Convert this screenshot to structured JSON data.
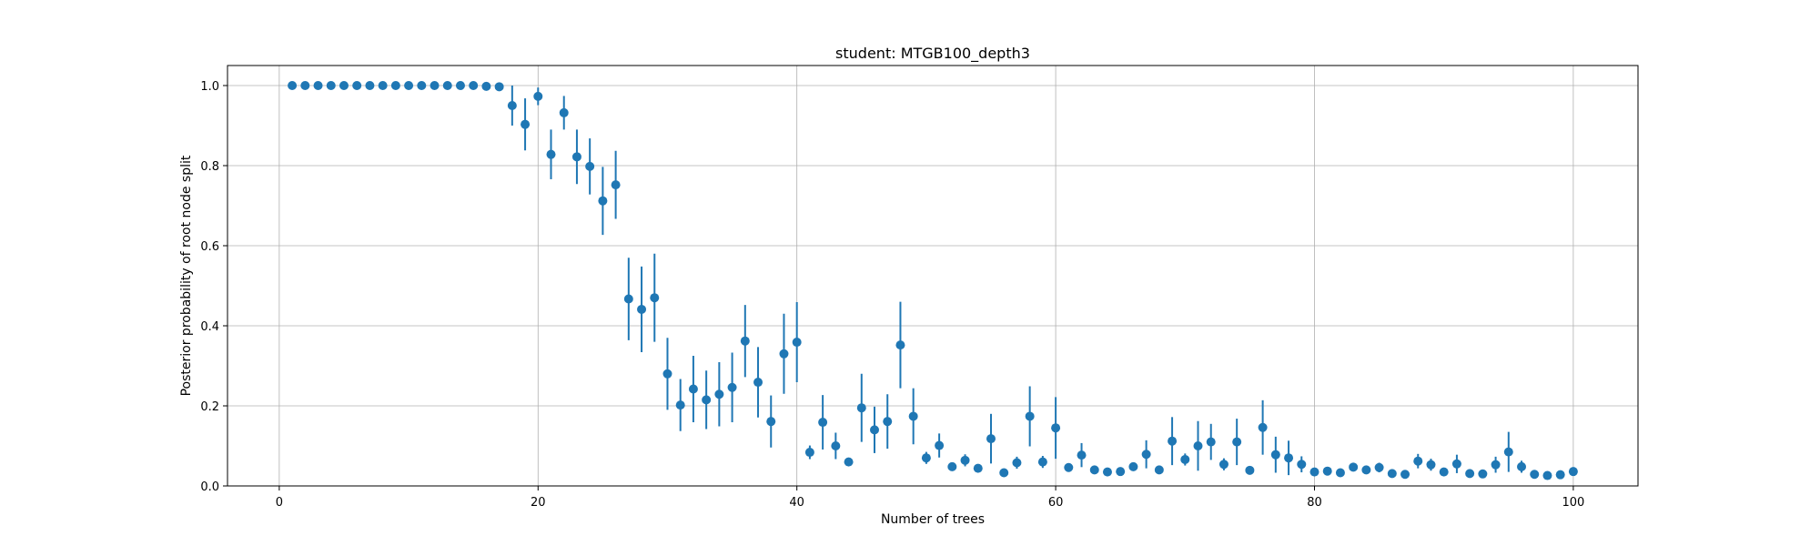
{
  "chart_data": {
    "type": "scatter",
    "title": "student: MTGB100_depth3",
    "xlabel": "Number of trees",
    "ylabel": "Posterior probability of root node split",
    "xlim": [
      -4,
      105
    ],
    "ylim": [
      0,
      1.05
    ],
    "xticks": [
      0,
      20,
      40,
      60,
      80,
      100
    ],
    "yticks": [
      0.0,
      0.2,
      0.4,
      0.6,
      0.8,
      1.0
    ],
    "xtick_labels": [
      "0",
      "20",
      "40",
      "60",
      "80",
      "100"
    ],
    "ytick_labels": [
      "0.0",
      "0.2",
      "0.4",
      "0.6",
      "0.8",
      "1.0"
    ],
    "grid": true,
    "legend": "none",
    "marker_color": "#1f77b4",
    "series": [
      {
        "x": [
          1,
          2,
          3,
          4,
          5,
          6,
          7,
          8,
          9,
          10,
          11,
          12,
          13,
          14,
          15,
          16,
          17,
          18,
          19,
          20,
          21,
          22,
          23,
          24,
          25,
          26,
          27,
          28,
          29,
          30,
          31,
          32,
          33,
          34,
          35,
          36,
          37,
          38,
          39,
          40,
          41,
          42,
          43,
          44,
          45,
          46,
          47,
          48,
          49,
          50,
          51,
          52,
          53,
          54,
          55,
          56,
          57,
          58,
          59,
          60,
          61,
          62,
          63,
          64,
          65,
          66,
          67,
          68,
          69,
          70,
          71,
          72,
          73,
          74,
          75,
          76,
          77,
          78,
          79,
          80,
          81,
          82,
          83,
          84,
          85,
          86,
          87,
          88,
          89,
          90,
          91,
          92,
          93,
          94,
          95,
          96,
          97,
          98,
          99,
          100
        ],
        "y": [
          1.0,
          1.0,
          1.0,
          1.0,
          1.0,
          1.0,
          1.0,
          1.0,
          1.0,
          1.0,
          1.0,
          1.0,
          1.0,
          1.0,
          1.0,
          0.998,
          0.997,
          0.95,
          0.903,
          0.973,
          0.828,
          0.932,
          0.822,
          0.798,
          0.712,
          0.752,
          0.467,
          0.441,
          0.47,
          0.28,
          0.202,
          0.242,
          0.215,
          0.229,
          0.246,
          0.362,
          0.259,
          0.161,
          0.33,
          0.359,
          0.084,
          0.159,
          0.1,
          0.06,
          0.195,
          0.14,
          0.161,
          0.352,
          0.174,
          0.07,
          0.101,
          0.048,
          0.064,
          0.044,
          0.118,
          0.033,
          0.058,
          0.174,
          0.06,
          0.145,
          0.046,
          0.077,
          0.04,
          0.035,
          0.036,
          0.048,
          0.079,
          0.04,
          0.112,
          0.066,
          0.1,
          0.11,
          0.054,
          0.11,
          0.039,
          0.146,
          0.078,
          0.07,
          0.054,
          0.035,
          0.037,
          0.033,
          0.047,
          0.04,
          0.046,
          0.031,
          0.029,
          0.062,
          0.053,
          0.035,
          0.055,
          0.031,
          0.03,
          0.053,
          0.085,
          0.048,
          0.029,
          0.026,
          0.028,
          0.036
        ],
        "yerr": [
          0,
          0,
          0,
          0,
          0,
          0,
          0,
          0,
          0,
          0,
          0,
          0,
          0,
          0,
          0,
          0.005,
          0.008,
          0.05,
          0.065,
          0.022,
          0.062,
          0.042,
          0.068,
          0.07,
          0.085,
          0.085,
          0.103,
          0.107,
          0.11,
          0.09,
          0.065,
          0.083,
          0.073,
          0.08,
          0.087,
          0.09,
          0.088,
          0.065,
          0.1,
          0.1,
          0.017,
          0.068,
          0.033,
          0,
          0.085,
          0.058,
          0.068,
          0.108,
          0.07,
          0.015,
          0.03,
          0,
          0.015,
          0,
          0.062,
          0,
          0.015,
          0.075,
          0.015,
          0.077,
          0,
          0.03,
          0,
          0,
          0,
          0,
          0.035,
          0,
          0.06,
          0.015,
          0.062,
          0.045,
          0.015,
          0.058,
          0,
          0.068,
          0.045,
          0.043,
          0.02,
          0,
          0,
          0,
          0.01,
          0,
          0.012,
          0,
          0,
          0.018,
          0.015,
          0,
          0.023,
          0,
          0,
          0.02,
          0.05,
          0.015,
          0,
          0,
          0,
          0
        ]
      }
    ]
  }
}
